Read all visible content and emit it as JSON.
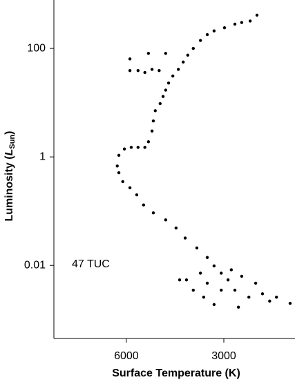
{
  "chart_data": {
    "type": "scatter",
    "x_label": "Surface Temperature (K)",
    "y_label": {
      "text": "Luminosity (",
      "symbol": "L",
      "subscript": "Sun",
      "close": ")"
    },
    "annotation": "47 TUC",
    "color": "#000000",
    "x_scale": "linear",
    "y_scale": "log",
    "xlim": [
      8230,
      810
    ],
    "ylim": [
      0.00045,
      780
    ],
    "xticks": [
      6000,
      3000
    ],
    "yticks": [
      0.01,
      1,
      100
    ],
    "x": [
      1980,
      2190,
      2450,
      2660,
      2980,
      3300,
      3510,
      3720,
      3940,
      4110,
      4250,
      4400,
      4570,
      4700,
      4790,
      4870,
      4960,
      5110,
      5170,
      5210,
      5320,
      5430,
      5640,
      5850,
      6060,
      6230,
      6280,
      6230,
      6110,
      5890,
      5680,
      5470,
      5170,
      4790,
      4470,
      4190,
      3830,
      3510,
      3300,
      3080,
      3720,
      4150,
      3510,
      2870,
      2660,
      2230,
      1810,
      1380,
      960,
      3300,
      2550,
      3940,
      4360,
      3080,
      3620,
      2450,
      2020,
      1590,
      2770,
      5890,
      5640,
      5430,
      5210,
      4990,
      4790,
      5320,
      5890
    ],
    "y": [
      410,
      320,
      300,
      280,
      240,
      210,
      180,
      140,
      100,
      75,
      56,
      41,
      31,
      23,
      17,
      13,
      9.6,
      7.1,
      4.6,
      3.0,
      1.9,
      1.5,
      1.5,
      1.5,
      1.4,
      1.07,
      0.68,
      0.51,
      0.35,
      0.27,
      0.2,
      0.13,
      0.093,
      0.069,
      0.049,
      0.032,
      0.021,
      0.014,
      0.0098,
      0.0072,
      0.0072,
      0.0054,
      0.0047,
      0.0054,
      0.0035,
      0.0026,
      0.003,
      0.0026,
      0.002,
      0.0019,
      0.0017,
      0.0035,
      0.0054,
      0.0035,
      0.0026,
      0.0063,
      0.0047,
      0.0022,
      0.0083,
      64,
      39,
      36,
      41,
      39,
      81,
      81,
      39
    ]
  }
}
